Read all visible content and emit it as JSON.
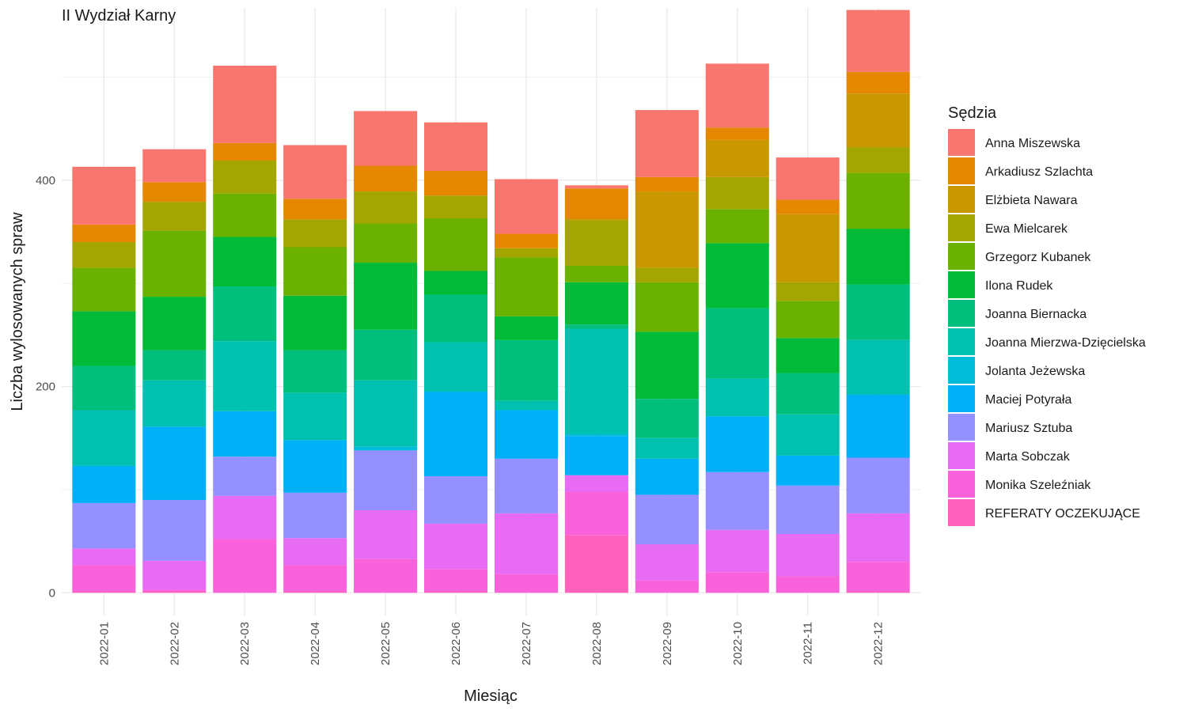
{
  "chart_data": {
    "type": "bar",
    "stacked": true,
    "title": "II Wydział Karny",
    "xlabel": "Miesiąc",
    "ylabel": "Liczba wylosowanych spraw",
    "ylim": [
      -22,
      567
    ],
    "y_ticks": [
      0,
      200,
      400
    ],
    "grid": true,
    "legend_title": "Sędzia",
    "legend_position": "right",
    "categories": [
      "2022-01",
      "2022-02",
      "2022-03",
      "2022-04",
      "2022-05",
      "2022-06",
      "2022-07",
      "2022-08",
      "2022-09",
      "2022-10",
      "2022-11",
      "2022-12"
    ],
    "stack_order_bottom_to_top": [
      "REFERATY OCZEKUJĄCE",
      "Monika Szeleźniak",
      "Marta Sobczak",
      "Mariusz Sztuba",
      "Maciej Potyrała",
      "Jolanta Jeżewska",
      "Joanna Mierzwa-Dzięcielska",
      "Joanna Biernacka",
      "Ilona Rudek",
      "Grzegorz Kubanek",
      "Ewa Mielcarek",
      "Elżbieta Nawara",
      "Arkadiusz Szlachta",
      "Anna Miszewska"
    ],
    "series": [
      {
        "name": "Anna Miszewska",
        "color": "#F8766D",
        "values": [
          56,
          32,
          75,
          52,
          53,
          47,
          53,
          3,
          65,
          62,
          41,
          60
        ]
      },
      {
        "name": "Arkadiusz Szlachta",
        "color": "#E58700",
        "values": [
          17,
          19,
          17,
          20,
          25,
          24,
          14,
          29,
          14,
          12,
          14,
          21
        ]
      },
      {
        "name": "Elżbieta Nawara",
        "color": "#C99800",
        "values": [
          0,
          0,
          0,
          0,
          0,
          0,
          0,
          2,
          74,
          36,
          66,
          52
        ]
      },
      {
        "name": "Ewa Mielcarek",
        "color": "#A3A500",
        "values": [
          25,
          28,
          32,
          27,
          31,
          22,
          9,
          44,
          14,
          31,
          18,
          25
        ]
      },
      {
        "name": "Grzegorz Kubanek",
        "color": "#6BB100",
        "values": [
          42,
          64,
          42,
          47,
          38,
          51,
          57,
          16,
          48,
          33,
          36,
          54
        ]
      },
      {
        "name": "Ilona Rudek",
        "color": "#00BA38",
        "values": [
          53,
          52,
          48,
          53,
          65,
          23,
          23,
          41,
          65,
          63,
          34,
          54
        ]
      },
      {
        "name": "Joanna Biernacka",
        "color": "#00BF7D",
        "values": [
          43,
          29,
          53,
          41,
          49,
          46,
          59,
          4,
          38,
          68,
          40,
          54
        ]
      },
      {
        "name": "Joanna Mierzwa-Dzięcielska",
        "color": "#00C0AF",
        "values": [
          54,
          45,
          68,
          46,
          64,
          48,
          9,
          102,
          20,
          37,
          40,
          53
        ]
      },
      {
        "name": "Jolanta Jeżewska",
        "color": "#00BCD8",
        "values": [
          0,
          0,
          0,
          0,
          4,
          0,
          0,
          2,
          0,
          0,
          0,
          0
        ]
      },
      {
        "name": "Maciej Potyrała",
        "color": "#00B0F6",
        "values": [
          36,
          71,
          44,
          51,
          0,
          82,
          47,
          38,
          35,
          54,
          29,
          61
        ]
      },
      {
        "name": "Mariusz Sztuba",
        "color": "#9590FF",
        "values": [
          44,
          59,
          38,
          44,
          58,
          46,
          53,
          0,
          48,
          56,
          47,
          54
        ]
      },
      {
        "name": "Marta Sobczak",
        "color": "#E76BF3",
        "values": [
          16,
          28,
          42,
          26,
          47,
          44,
          59,
          16,
          35,
          41,
          41,
          47
        ]
      },
      {
        "name": "Monika Szeleźniak",
        "color": "#FA62DB",
        "values": [
          26,
          2,
          52,
          26,
          33,
          22,
          18,
          42,
          12,
          20,
          16,
          29
        ]
      },
      {
        "name": "REFERATY OCZEKUJĄCE",
        "color": "#FF62BC",
        "values": [
          1,
          1,
          0,
          1,
          0,
          1,
          0,
          56,
          0,
          0,
          0,
          1
        ]
      }
    ]
  }
}
